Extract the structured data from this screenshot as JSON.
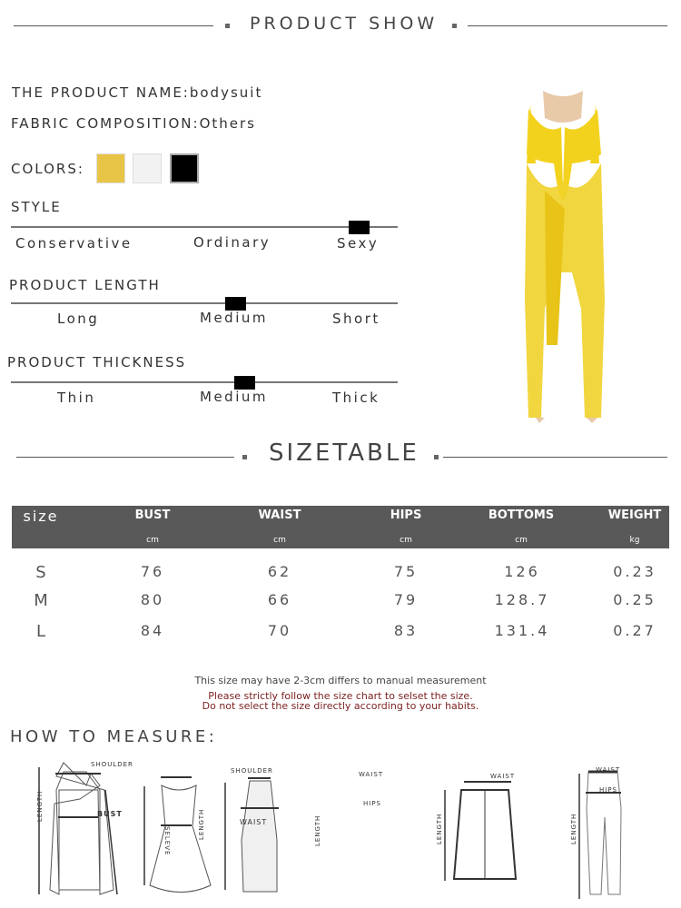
{
  "header": {
    "title": "PRODUCT SHOW"
  },
  "product": {
    "name_label": "THE PRODUCT NAME:",
    "name_value": "bodysuit",
    "fabric_label": "FABRIC COMPOSITION:",
    "fabric_value": "Others",
    "colors_label": "COLORS:",
    "colors": [
      "#e9c547",
      "#f2f2f2",
      "#000000"
    ]
  },
  "style": {
    "label": "STYLE",
    "options": [
      "Conservative",
      "Ordinary",
      "Sexy"
    ],
    "selected": "Sexy"
  },
  "length": {
    "label": "PRODUCT LENGTH",
    "options": [
      "Long",
      "Medium",
      "Short"
    ],
    "selected": "Medium"
  },
  "thickness": {
    "label": "PRODUCT THICKNESS",
    "options": [
      "Thin",
      "Medium",
      "Thick"
    ],
    "selected": "Medium"
  },
  "sizetable": {
    "title": "SIZETABLE",
    "columns": [
      {
        "name": "size",
        "unit": ""
      },
      {
        "name": "BUST",
        "unit": "cm"
      },
      {
        "name": "WAIST",
        "unit": "cm"
      },
      {
        "name": "HIPS",
        "unit": "cm"
      },
      {
        "name": "BOTTOMS",
        "unit": "cm"
      },
      {
        "name": "WEIGHT",
        "unit": "kg"
      }
    ],
    "rows": [
      [
        "S",
        "76",
        "62",
        "75",
        "126",
        "0.23"
      ],
      [
        "M",
        "80",
        "66",
        "79",
        "128.7",
        "0.25"
      ],
      [
        "L",
        "84",
        "70",
        "83",
        "131.4",
        "0.27"
      ]
    ],
    "note1": "This size may have 2-3cm differs to manual measurement",
    "note2": "Please strictly follow the size chart to selset the size.",
    "note3": "Do not select the size directly according to your habits."
  },
  "measure": {
    "title": "HOW TO MEASURE:",
    "labels": {
      "shoulder": "SHOULDER",
      "bust": "BUST",
      "length": "LENGTH",
      "sleeve": "SELEVE",
      "waist": "WAIST",
      "hips": "HIPS"
    }
  },
  "colors": {
    "header_bg": "#595959",
    "warning": "#7a1f1f",
    "product": "#f3d21e"
  }
}
